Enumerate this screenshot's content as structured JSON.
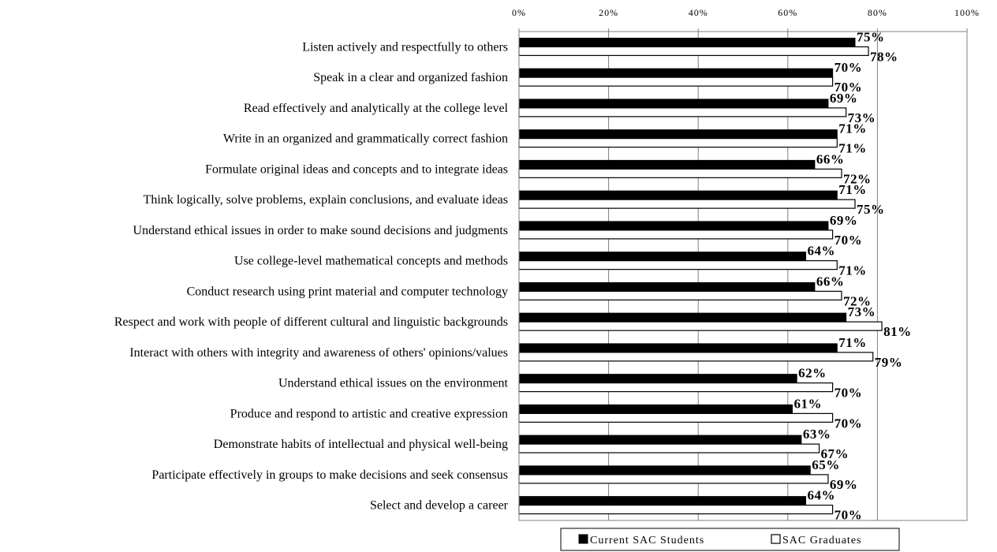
{
  "chart_data": {
    "type": "bar",
    "orientation": "horizontal",
    "categories": [
      "Listen actively and respectfully to others",
      "Speak in a clear and organized fashion",
      "Read effectively and analytically at the college level",
      "Write in an organized and grammatically correct fashion",
      "Formulate original ideas and concepts and to integrate ideas",
      "Think logically, solve problems, explain conclusions, and evaluate ideas",
      "Understand ethical issues in order to make sound decisions and judgments",
      "Use college-level mathematical concepts and methods",
      "Conduct research using print material and computer technology",
      "Respect and work with people of different cultural and linguistic backgrounds",
      "Interact with others with integrity and awareness of others' opinions/values",
      "Understand ethical issues on the environment",
      "Produce and respond to artistic and creative expression",
      "Demonstrate habits of intellectual and physical well-being",
      "Participate effectively in groups to make decisions and seek consensus",
      "Select and develop a career"
    ],
    "series": [
      {
        "name": "Current SAC Students",
        "color": "#000000",
        "values": [
          75,
          70,
          69,
          71,
          66,
          71,
          69,
          64,
          66,
          73,
          71,
          62,
          61,
          63,
          65,
          64
        ],
        "labels": [
          "75%",
          "70%",
          "69%",
          "71%",
          "66%",
          "71%",
          "69%",
          "64%",
          "66%",
          "73%",
          "71%",
          "62%",
          "61%",
          "63%",
          "65%",
          "64%"
        ]
      },
      {
        "name": "SAC Graduates",
        "color": "#ffffff",
        "values": [
          78,
          70,
          73,
          71,
          72,
          75,
          70,
          71,
          72,
          81,
          79,
          70,
          70,
          67,
          69,
          70
        ],
        "labels": [
          "78%",
          "70%",
          "73%",
          "71%",
          "72%",
          "75%",
          "70%",
          "71%",
          "72%",
          "81%",
          "79%",
          "70%",
          "70%",
          "67%",
          "69%",
          "70%"
        ]
      }
    ],
    "xlim": [
      0,
      100
    ],
    "xticks": [
      0,
      20,
      40,
      60,
      80,
      100
    ],
    "xtick_labels": [
      "0%",
      "20%",
      "40%",
      "60%",
      "80%",
      "100%"
    ],
    "grid": "vertical",
    "legend_position": "bottom"
  }
}
